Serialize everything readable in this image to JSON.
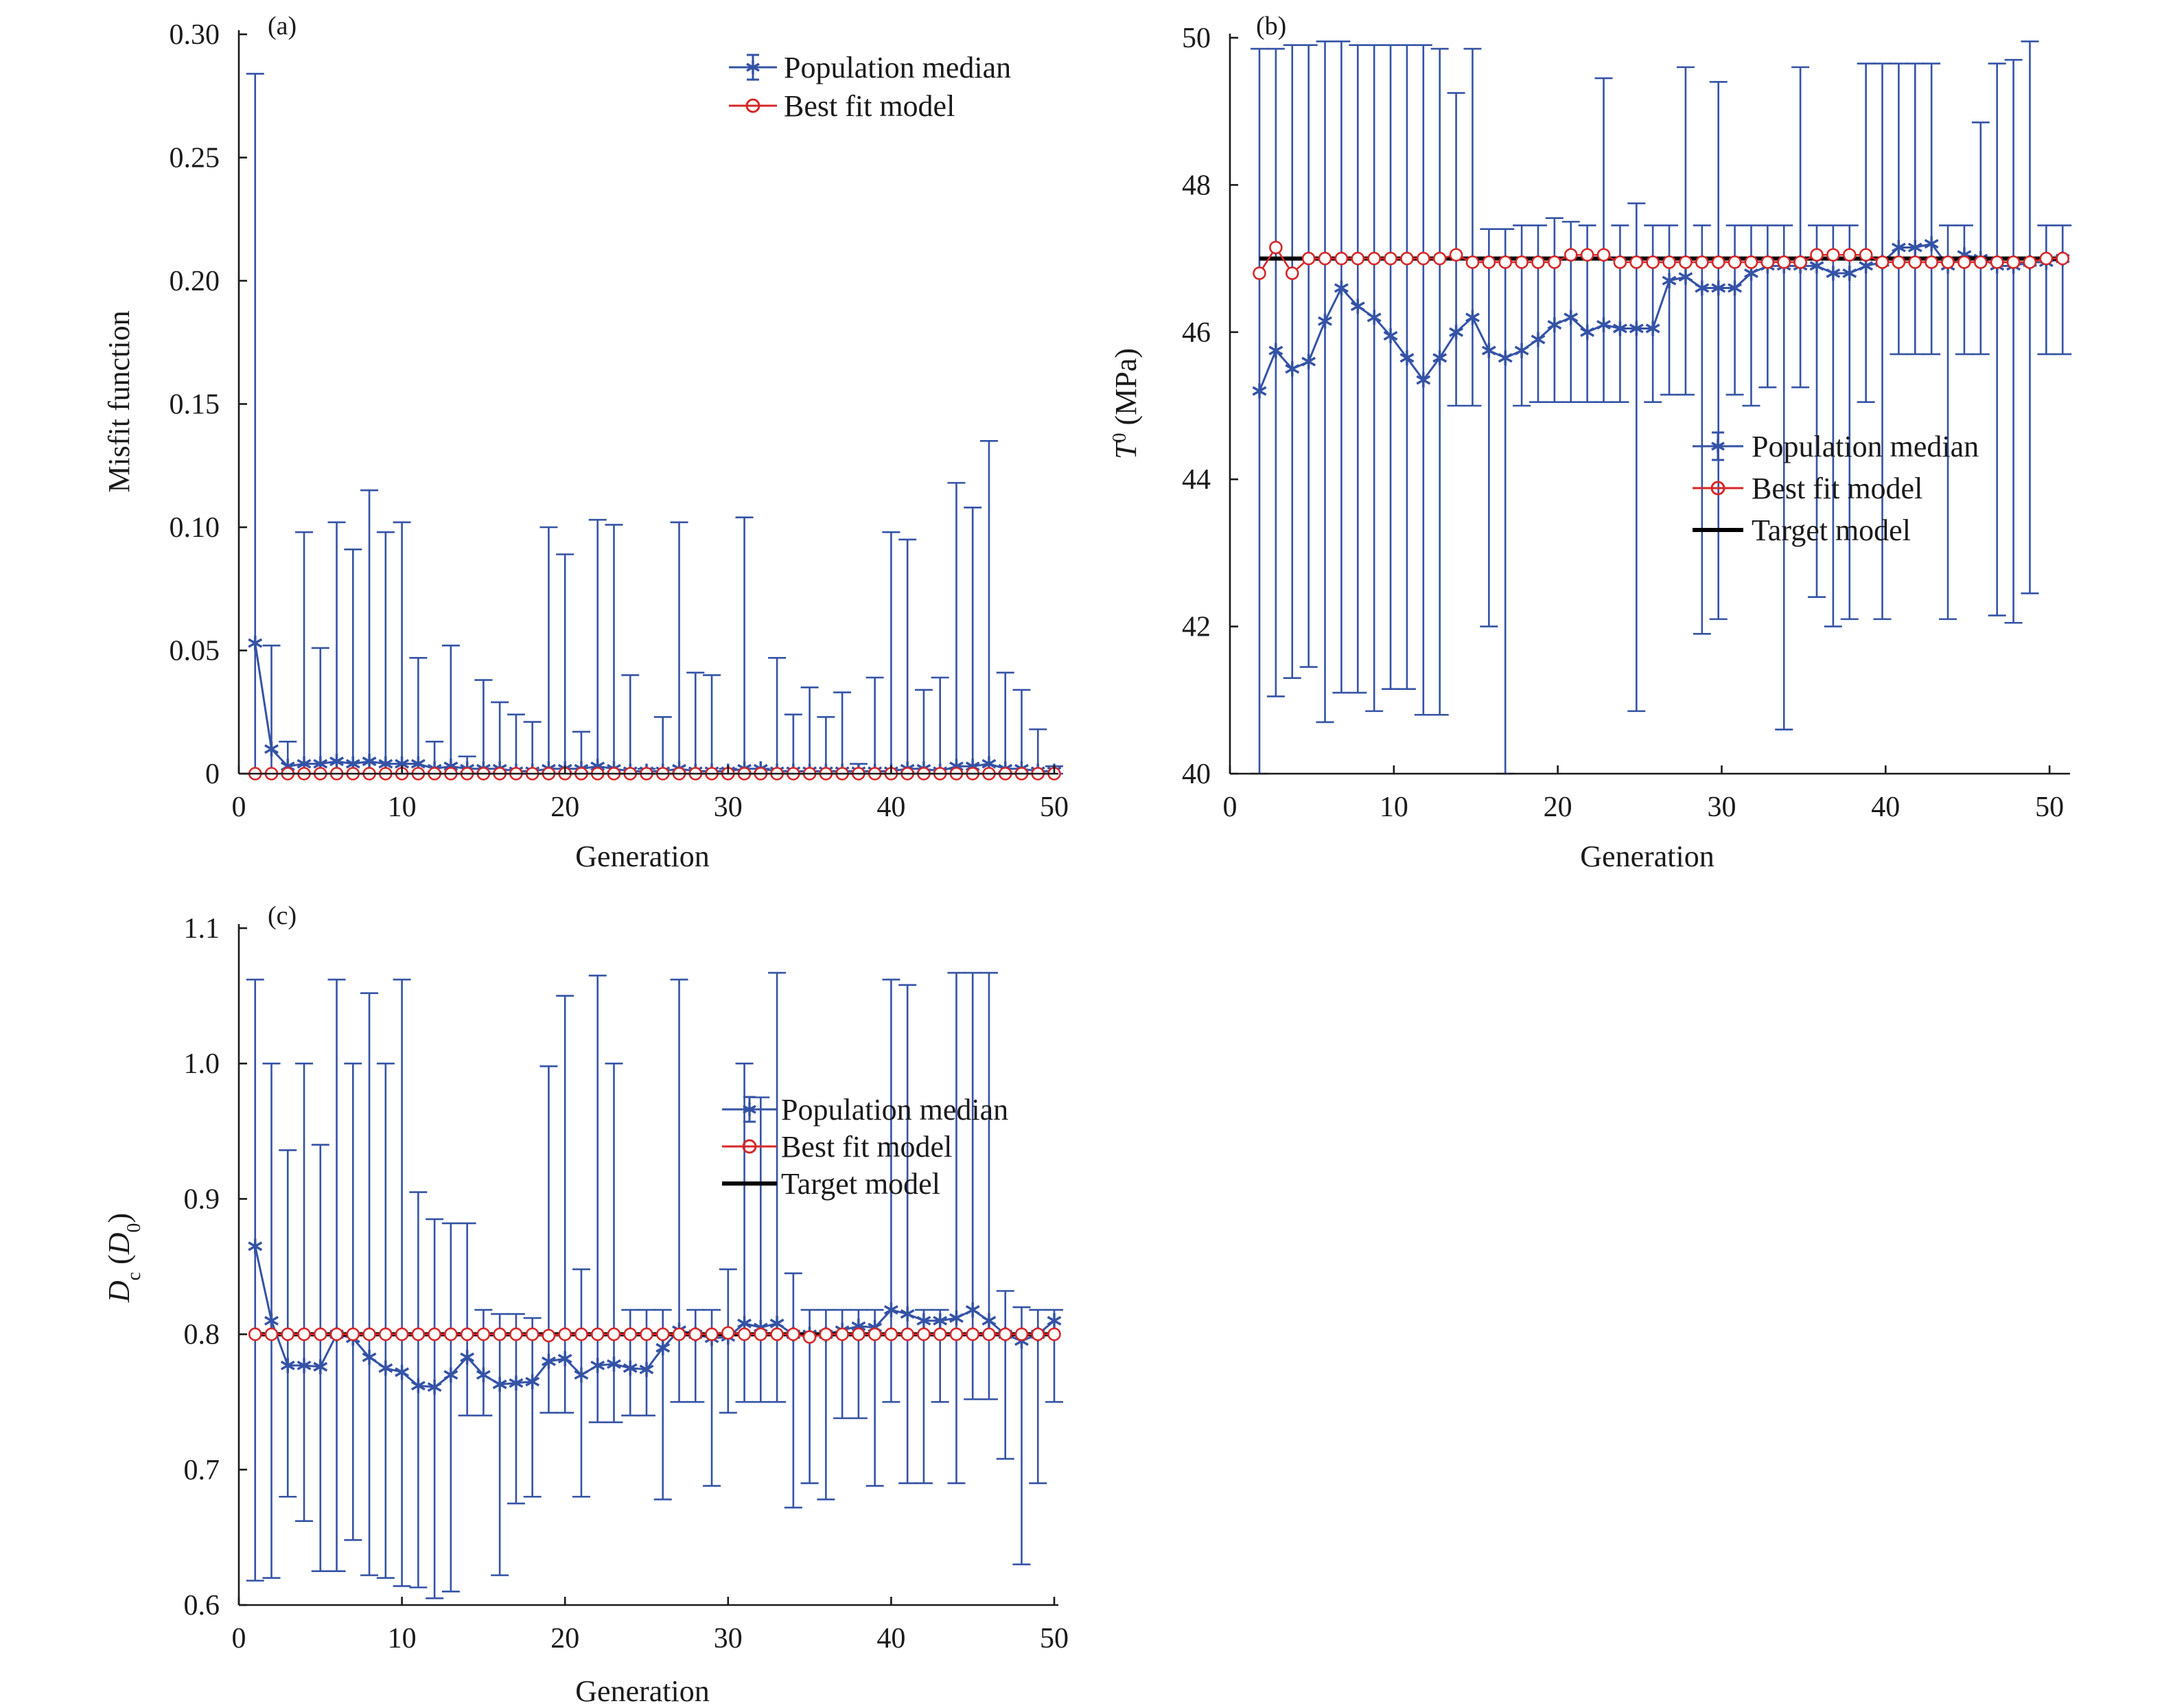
{
  "colors": {
    "median": "#3453a6",
    "best": "#d62728",
    "target": "#000000",
    "axis": "#1a1a1a"
  },
  "legend_labels": {
    "median": "Population median",
    "best": "Best fit model",
    "target": "Target model"
  },
  "chart_data": [
    {
      "type": "line",
      "panel_label": "(a)",
      "xlabel": "Generation",
      "ylabel": "Misfit function",
      "xlim": [
        0,
        50
      ],
      "ylim": [
        0,
        0.3
      ],
      "x_ticks": [
        0,
        10,
        20,
        30,
        40,
        50
      ],
      "x_tick_labels": [
        "0",
        "10",
        "20",
        "30",
        "40",
        "50"
      ],
      "y_ticks": [
        0,
        0.05,
        0.1,
        0.15,
        0.2,
        0.25,
        0.3
      ],
      "y_tick_labels": [
        "0",
        "0.05",
        "0.10",
        "0.15",
        "0.20",
        "0.25",
        "0.30"
      ],
      "legend_placement": "top-right",
      "series": [
        {
          "name": "Population median",
          "x": [
            1,
            2,
            3,
            4,
            5,
            6,
            7,
            8,
            9,
            10,
            11,
            12,
            13,
            14,
            15,
            16,
            17,
            18,
            19,
            20,
            21,
            22,
            23,
            24,
            25,
            26,
            27,
            28,
            29,
            30,
            31,
            32,
            33,
            34,
            35,
            36,
            37,
            38,
            39,
            40,
            41,
            42,
            43,
            44,
            45,
            46,
            47,
            48,
            49,
            50
          ],
          "y": [
            0.053,
            0.01,
            0.003,
            0.004,
            0.004,
            0.005,
            0.004,
            0.005,
            0.004,
            0.004,
            0.004,
            0.002,
            0.003,
            0.002,
            0.002,
            0.002,
            0.001,
            0.001,
            0.002,
            0.002,
            0.002,
            0.003,
            0.002,
            0.001,
            0.001,
            0.001,
            0.002,
            0.001,
            0.001,
            0.001,
            0.002,
            0.002,
            0.001,
            0.001,
            0.001,
            0.001,
            0.001,
            0.001,
            0.001,
            0.001,
            0.002,
            0.002,
            0.001,
            0.003,
            0.003,
            0.004,
            0.002,
            0.002,
            0.001,
            0.001
          ],
          "upper": [
            0.284,
            0.052,
            0.013,
            0.098,
            0.051,
            0.102,
            0.091,
            0.115,
            0.098,
            0.102,
            0.047,
            0.013,
            0.052,
            0.007,
            0.038,
            0.029,
            0.024,
            0.021,
            0.1,
            0.089,
            0.017,
            0.103,
            0.101,
            0.04,
            0.002,
            0.023,
            0.102,
            0.041,
            0.04,
            0.002,
            0.104,
            0.002,
            0.047,
            0.024,
            0.035,
            0.023,
            0.033,
            0.004,
            0.039,
            0.098,
            0.095,
            0.034,
            0.039,
            0.118,
            0.108,
            0.135,
            0.041,
            0.034,
            0.018,
            0.003
          ],
          "lower": [
            0,
            0,
            0,
            0,
            0,
            0,
            0,
            0,
            0,
            0,
            0,
            0,
            0,
            0,
            0,
            0,
            0,
            0,
            0,
            0,
            0,
            0,
            0,
            0,
            0,
            0,
            0,
            0,
            0,
            0,
            0,
            0,
            0,
            0,
            0,
            0,
            0,
            0,
            0,
            0,
            0,
            0,
            0,
            0,
            0,
            0,
            0,
            0,
            0,
            0
          ]
        },
        {
          "name": "Best fit model",
          "x": [
            1,
            2,
            3,
            4,
            5,
            6,
            7,
            8,
            9,
            10,
            11,
            12,
            13,
            14,
            15,
            16,
            17,
            18,
            19,
            20,
            21,
            22,
            23,
            24,
            25,
            26,
            27,
            28,
            29,
            30,
            31,
            32,
            33,
            34,
            35,
            36,
            37,
            38,
            39,
            40,
            41,
            42,
            43,
            44,
            45,
            46,
            47,
            48,
            49,
            50
          ],
          "y": [
            0,
            0,
            0,
            0,
            0,
            0,
            0,
            0,
            0,
            0,
            0,
            0,
            0,
            0,
            0,
            0,
            0,
            0,
            0,
            0,
            0,
            0,
            0,
            0,
            0,
            0,
            0,
            0,
            0,
            0,
            0,
            0,
            0,
            0,
            0,
            0,
            0,
            0,
            0,
            0,
            0,
            0,
            0,
            0,
            0,
            0,
            0,
            0,
            0,
            0
          ]
        }
      ]
    },
    {
      "type": "line",
      "panel_label": "(b)",
      "xlabel": "Generation",
      "ylabel_main": "T",
      "ylabel_sup": "0",
      "ylabel_rest": " (MPa)",
      "xlim": [
        0,
        51
      ],
      "ylim": [
        40,
        50
      ],
      "x_ticks": [
        0,
        10,
        20,
        30,
        40,
        50
      ],
      "x_tick_labels": [
        "0",
        "10",
        "20",
        "30",
        "40",
        "50"
      ],
      "y_ticks": [
        40,
        42,
        44,
        46,
        48,
        50
      ],
      "y_tick_labels": [
        "40",
        "42",
        "44",
        "46",
        "48",
        "50"
      ],
      "legend_placement": "center-right",
      "series": [
        {
          "name": "Population median",
          "x": [
            1.8,
            2.8,
            3.8,
            4.8,
            5.8,
            6.8,
            7.8,
            8.8,
            9.8,
            10.8,
            11.8,
            12.8,
            13.8,
            14.8,
            15.8,
            16.8,
            17.8,
            18.8,
            19.8,
            20.8,
            21.8,
            22.8,
            23.8,
            24.8,
            25.8,
            26.8,
            27.8,
            28.8,
            29.8,
            30.8,
            31.8,
            32.8,
            33.8,
            34.8,
            35.8,
            36.8,
            37.8,
            38.8,
            39.8,
            40.8,
            41.8,
            42.8,
            43.8,
            44.8,
            45.8,
            46.8,
            47.8,
            48.8,
            49.8,
            50.8
          ],
          "y": [
            45.2,
            45.75,
            45.5,
            45.6,
            46.15,
            46.6,
            46.35,
            46.2,
            45.95,
            45.65,
            45.35,
            45.65,
            46.0,
            46.2,
            45.75,
            45.65,
            45.75,
            45.9,
            46.1,
            46.2,
            46.0,
            46.1,
            46.05,
            46.05,
            46.05,
            46.7,
            46.75,
            46.6,
            46.6,
            46.6,
            46.8,
            46.9,
            46.9,
            46.9,
            46.9,
            46.8,
            46.8,
            46.9,
            46.95,
            47.15,
            47.15,
            47.2,
            46.9,
            47.05,
            47.0,
            46.9,
            46.9,
            46.95,
            46.95,
            47.0
          ],
          "upper": [
            49.85,
            49.85,
            49.9,
            49.9,
            49.95,
            49.95,
            49.9,
            49.9,
            49.9,
            49.9,
            49.9,
            49.85,
            49.25,
            49.85,
            47.4,
            47.4,
            47.45,
            47.45,
            47.55,
            47.5,
            47.45,
            49.45,
            47.45,
            47.75,
            47.45,
            47.45,
            49.6,
            47.45,
            49.4,
            47.45,
            47.45,
            47.45,
            47.45,
            49.6,
            47.45,
            47.45,
            47.45,
            49.65,
            49.65,
            49.65,
            49.65,
            49.65,
            47.45,
            47.45,
            48.85,
            49.65,
            49.7,
            49.95,
            47.45,
            47.45
          ],
          "lower": [
            40.0,
            41.05,
            41.3,
            41.45,
            40.7,
            41.1,
            41.1,
            40.85,
            41.15,
            41.15,
            40.8,
            40.8,
            45.0,
            45.0,
            42.0,
            40.0,
            45.0,
            45.05,
            45.05,
            45.05,
            45.05,
            45.05,
            45.05,
            40.85,
            45.05,
            45.15,
            45.15,
            41.9,
            42.1,
            45.15,
            45.0,
            45.25,
            40.6,
            45.25,
            42.4,
            42.0,
            42.1,
            45.05,
            42.1,
            45.7,
            45.7,
            45.7,
            42.1,
            45.7,
            45.7,
            42.15,
            42.05,
            42.45,
            45.7,
            45.7
          ]
        },
        {
          "name": "Best fit model",
          "x": [
            1.8,
            2.8,
            3.8,
            4.8,
            5.8,
            6.8,
            7.8,
            8.8,
            9.8,
            10.8,
            11.8,
            12.8,
            13.8,
            14.8,
            15.8,
            16.8,
            17.8,
            18.8,
            19.8,
            20.8,
            21.8,
            22.8,
            23.8,
            24.8,
            25.8,
            26.8,
            27.8,
            28.8,
            29.8,
            30.8,
            31.8,
            32.8,
            33.8,
            34.8,
            35.8,
            36.8,
            37.8,
            38.8,
            39.8,
            40.8,
            41.8,
            42.8,
            43.8,
            44.8,
            45.8,
            46.8,
            47.8,
            48.8,
            49.8,
            50.8
          ],
          "y": [
            46.8,
            47.15,
            46.8,
            47.0,
            47.0,
            47.0,
            47.0,
            47.0,
            47.0,
            47.0,
            47.0,
            47.0,
            47.05,
            46.95,
            46.95,
            46.95,
            46.95,
            46.95,
            46.95,
            47.05,
            47.05,
            47.05,
            46.95,
            46.95,
            46.95,
            46.95,
            46.95,
            46.95,
            46.95,
            46.95,
            46.95,
            46.95,
            46.95,
            46.95,
            47.05,
            47.05,
            47.05,
            47.05,
            46.95,
            46.95,
            46.95,
            46.95,
            46.95,
            46.95,
            46.95,
            46.95,
            46.95,
            46.95,
            47.0,
            47.0
          ]
        },
        {
          "name": "Target model",
          "x": [
            1.8,
            50.8
          ],
          "y": [
            47.0,
            47.0
          ]
        }
      ]
    },
    {
      "type": "line",
      "panel_label": "(c)",
      "xlabel": "Generation",
      "ylabel_main": "D",
      "ylabel_sub": "c",
      "ylabel_open": " (",
      "ylabel_inner": "D",
      "ylabel_inner_sub": "0",
      "ylabel_close": ")",
      "xlim": [
        0,
        50
      ],
      "ylim": [
        0.6,
        1.1
      ],
      "x_ticks": [
        0,
        10,
        20,
        30,
        40,
        50
      ],
      "x_tick_labels": [
        "0",
        "10",
        "20",
        "30",
        "40",
        "50"
      ],
      "y_ticks": [
        0.6,
        0.7,
        0.8,
        0.9,
        1.0,
        1.1
      ],
      "y_tick_labels": [
        "0.6",
        "0.7",
        "0.8",
        "0.9",
        "1.0",
        "1.1"
      ],
      "legend_placement": "center-right",
      "series": [
        {
          "name": "Population median",
          "x": [
            1,
            2,
            3,
            4,
            5,
            6,
            7,
            8,
            9,
            10,
            11,
            12,
            13,
            14,
            15,
            16,
            17,
            18,
            19,
            20,
            21,
            22,
            23,
            24,
            25,
            26,
            27,
            28,
            29,
            30,
            31,
            32,
            33,
            34,
            35,
            36,
            37,
            38,
            39,
            40,
            41,
            42,
            43,
            44,
            45,
            46,
            47,
            48,
            49,
            50
          ],
          "y": [
            0.865,
            0.81,
            0.777,
            0.777,
            0.776,
            0.8,
            0.797,
            0.783,
            0.775,
            0.772,
            0.762,
            0.761,
            0.77,
            0.783,
            0.77,
            0.763,
            0.764,
            0.765,
            0.78,
            0.782,
            0.77,
            0.777,
            0.778,
            0.775,
            0.774,
            0.79,
            0.803,
            0.8,
            0.797,
            0.798,
            0.808,
            0.805,
            0.808,
            0.8,
            0.8,
            0.8,
            0.803,
            0.806,
            0.805,
            0.818,
            0.815,
            0.81,
            0.81,
            0.812,
            0.818,
            0.81,
            0.8,
            0.795,
            0.8,
            0.81
          ],
          "upper": [
            1.062,
            1.0,
            0.936,
            1.0,
            0.94,
            1.062,
            1.0,
            1.052,
            1.0,
            1.062,
            0.905,
            0.885,
            0.882,
            0.882,
            0.818,
            0.815,
            0.815,
            0.812,
            0.998,
            1.05,
            0.848,
            1.065,
            1.0,
            0.818,
            0.818,
            0.818,
            1.062,
            0.818,
            0.818,
            0.848,
            1.0,
            0.975,
            1.067,
            0.845,
            0.818,
            0.818,
            0.818,
            0.818,
            0.818,
            1.062,
            1.058,
            0.818,
            0.818,
            1.067,
            1.067,
            1.067,
            0.832,
            0.82,
            0.818,
            0.818
          ],
          "lower": [
            0.618,
            0.62,
            0.68,
            0.662,
            0.625,
            0.625,
            0.648,
            0.622,
            0.62,
            0.614,
            0.613,
            0.605,
            0.61,
            0.74,
            0.74,
            0.622,
            0.675,
            0.68,
            0.742,
            0.742,
            0.68,
            0.735,
            0.735,
            0.74,
            0.74,
            0.678,
            0.75,
            0.75,
            0.688,
            0.742,
            0.75,
            0.75,
            0.75,
            0.672,
            0.69,
            0.678,
            0.738,
            0.738,
            0.688,
            0.75,
            0.69,
            0.69,
            0.75,
            0.69,
            0.752,
            0.752,
            0.708,
            0.63,
            0.69,
            0.75
          ]
        },
        {
          "name": "Best fit model",
          "x": [
            1,
            2,
            3,
            4,
            5,
            6,
            7,
            8,
            9,
            10,
            11,
            12,
            13,
            14,
            15,
            16,
            17,
            18,
            19,
            20,
            21,
            22,
            23,
            24,
            25,
            26,
            27,
            28,
            29,
            30,
            31,
            32,
            33,
            34,
            35,
            36,
            37,
            38,
            39,
            40,
            41,
            42,
            43,
            44,
            45,
            46,
            47,
            48,
            49,
            50
          ],
          "y": [
            0.8,
            0.8,
            0.8,
            0.8,
            0.8,
            0.8,
            0.8,
            0.8,
            0.8,
            0.8,
            0.8,
            0.8,
            0.8,
            0.8,
            0.8,
            0.8,
            0.8,
            0.8,
            0.799,
            0.8,
            0.8,
            0.8,
            0.8,
            0.8,
            0.8,
            0.8,
            0.8,
            0.8,
            0.8,
            0.801,
            0.8,
            0.8,
            0.8,
            0.8,
            0.798,
            0.8,
            0.8,
            0.8,
            0.8,
            0.8,
            0.8,
            0.8,
            0.8,
            0.8,
            0.8,
            0.8,
            0.8,
            0.8,
            0.8,
            0.8
          ]
        },
        {
          "name": "Target model",
          "x": [
            1,
            50
          ],
          "y": [
            0.8,
            0.8
          ]
        }
      ]
    }
  ]
}
